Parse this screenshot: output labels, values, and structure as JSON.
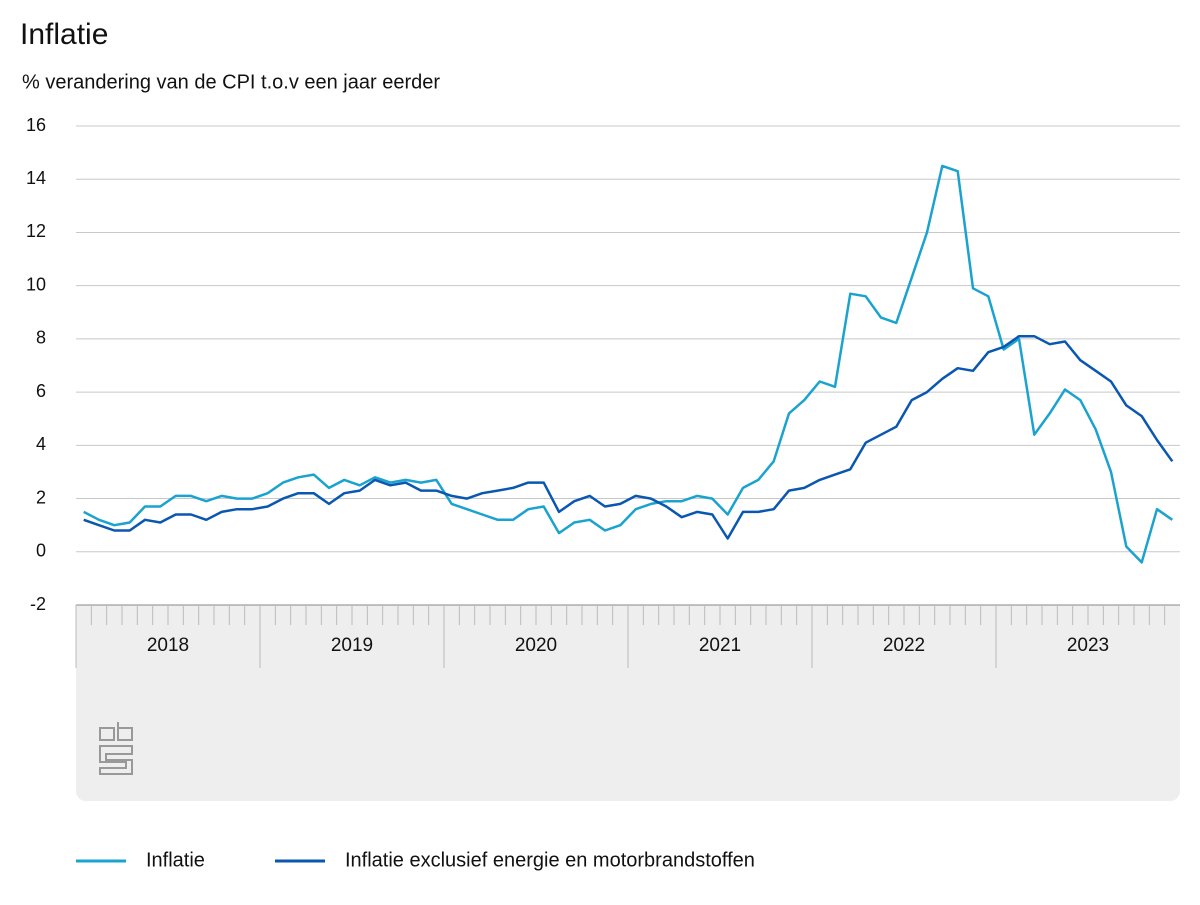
{
  "chart_data": {
    "type": "line",
    "title": "Inflatie",
    "subtitle": "% verandering van de CPI t.o.v een jaar eerder",
    "years": [
      "2018",
      "2019",
      "2020",
      "2021",
      "2022",
      "2023"
    ],
    "ylim": [
      -2,
      16
    ],
    "yticks": [
      -2,
      0,
      2,
      4,
      6,
      8,
      10,
      12,
      14,
      16
    ],
    "grid": true,
    "series": [
      {
        "name": "Inflatie",
        "color": "#1aa3cf",
        "values": [
          1.5,
          1.2,
          1.0,
          1.1,
          1.7,
          1.7,
          2.1,
          2.1,
          1.9,
          2.1,
          2.0,
          2.0,
          2.2,
          2.6,
          2.8,
          2.9,
          2.4,
          2.7,
          2.5,
          2.8,
          2.6,
          2.7,
          2.6,
          2.7,
          1.8,
          1.6,
          1.4,
          1.2,
          1.2,
          1.6,
          1.7,
          0.7,
          1.1,
          1.2,
          0.8,
          1.0,
          1.6,
          1.8,
          1.9,
          1.9,
          2.1,
          2.0,
          1.4,
          2.4,
          2.7,
          3.4,
          5.2,
          5.7,
          6.4,
          6.2,
          9.7,
          9.6,
          8.8,
          8.6,
          10.3,
          12.0,
          14.5,
          14.3,
          9.9,
          9.6,
          7.6,
          8.0,
          4.4,
          5.2,
          6.1,
          5.7,
          4.6,
          3.0,
          0.2,
          -0.4,
          1.6,
          1.2
        ]
      },
      {
        "name": "Inflatie exclusief energie en motorbrandstoffen",
        "color": "#0a57b2",
        "values": [
          1.2,
          1.0,
          0.8,
          0.8,
          1.2,
          1.1,
          1.4,
          1.4,
          1.2,
          1.5,
          1.6,
          1.6,
          1.7,
          2.0,
          2.2,
          2.2,
          1.8,
          2.2,
          2.3,
          2.7,
          2.5,
          2.6,
          2.3,
          2.3,
          2.1,
          2.0,
          2.2,
          2.3,
          2.4,
          2.6,
          2.6,
          1.5,
          1.9,
          2.1,
          1.7,
          1.8,
          2.1,
          2.0,
          1.7,
          1.3,
          1.5,
          1.4,
          0.5,
          1.5,
          1.5,
          1.6,
          2.3,
          2.4,
          2.7,
          2.9,
          3.1,
          4.1,
          4.4,
          4.7,
          5.7,
          6.0,
          6.5,
          6.9,
          6.8,
          7.5,
          7.7,
          8.1,
          8.1,
          7.8,
          7.9,
          7.2,
          6.8,
          6.4,
          5.5,
          5.1,
          4.2,
          3.4
        ]
      }
    ]
  }
}
